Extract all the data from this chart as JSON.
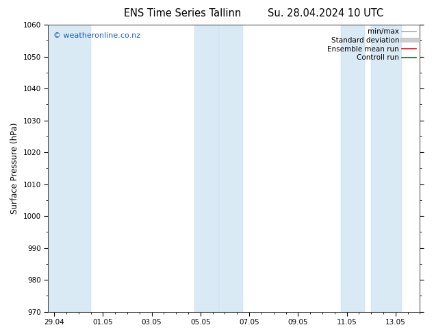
{
  "title_left": "ENS Time Series Tallinn",
  "title_right": "Su. 28.04.2024 10 UTC",
  "ylabel": "Surface Pressure (hPa)",
  "ylim": [
    970,
    1060
  ],
  "yticks": [
    970,
    980,
    990,
    1000,
    1010,
    1020,
    1030,
    1040,
    1050,
    1060
  ],
  "xtick_labels": [
    "29.04",
    "01.05",
    "03.05",
    "05.05",
    "07.05",
    "09.05",
    "11.05",
    "13.05"
  ],
  "watermark": "© weatheronline.co.nz",
  "watermark_color": "#1a5cb0",
  "band_color": "#daeaf5",
  "band_edge_color": "#c0d8ee",
  "legend_items": [
    {
      "label": "min/max",
      "color": "#aaaaaa",
      "lw": 1.2
    },
    {
      "label": "Standard deviation",
      "color": "#cccccc",
      "lw": 5
    },
    {
      "label": "Ensemble mean run",
      "color": "#ff0000",
      "lw": 1.2
    },
    {
      "label": "Controll run",
      "color": "#007700",
      "lw": 1.2
    }
  ],
  "background_color": "#ffffff",
  "title_fontsize": 10.5,
  "tick_fontsize": 7.5,
  "ylabel_fontsize": 8.5,
  "legend_fontsize": 7.5
}
